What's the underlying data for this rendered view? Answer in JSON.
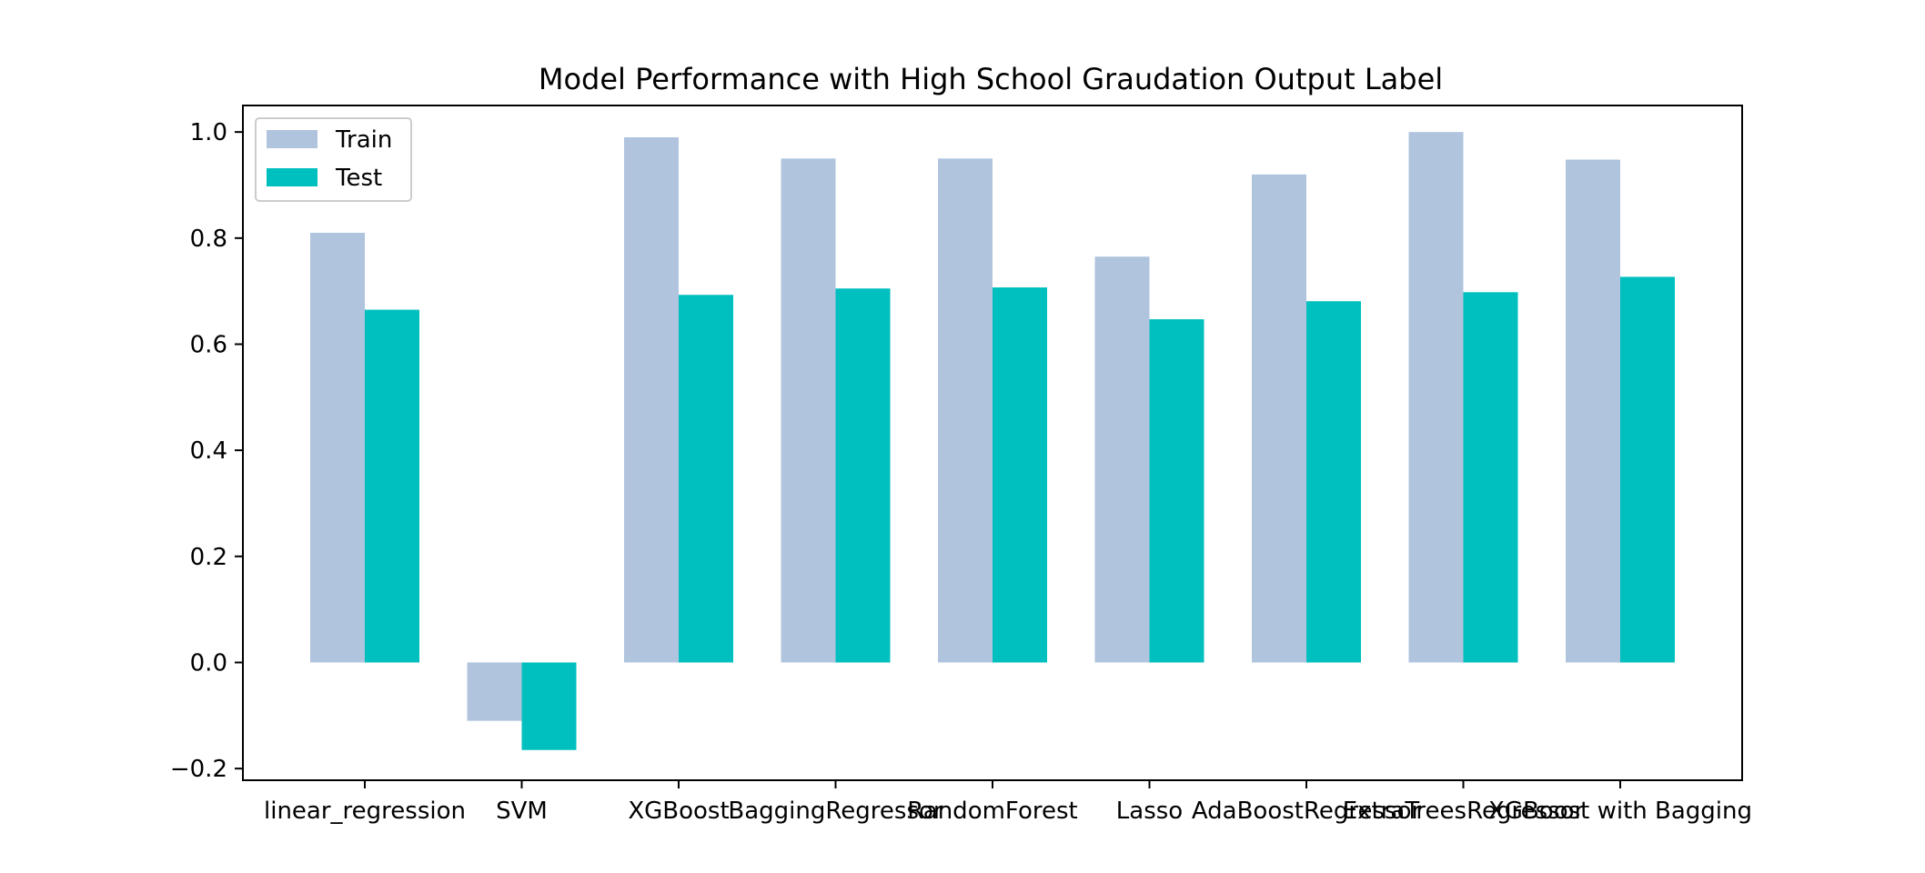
{
  "chart_data": {
    "type": "bar",
    "title": "Model Performance with High School Graudation Output Label",
    "xlabel": "",
    "ylabel": "",
    "categories": [
      "linear_regression",
      "SVM",
      "XGBoost",
      "BaggingRegressor",
      "RandomForest",
      "Lasso",
      "AdaBoostRegressor",
      "ExtraTreesRegressor",
      "XGBoost with Bagging"
    ],
    "series": [
      {
        "name": "Train",
        "color": "#b0c4de",
        "values": [
          0.81,
          -0.11,
          0.99,
          0.95,
          0.95,
          0.765,
          0.92,
          1.0,
          0.948
        ]
      },
      {
        "name": "Test",
        "color": "#00bfbf",
        "values": [
          0.665,
          -0.165,
          0.693,
          0.705,
          0.707,
          0.647,
          0.681,
          0.698,
          0.727
        ]
      }
    ],
    "ylim": [
      -0.222,
      1.05
    ],
    "yticks": [
      -0.2,
      0.0,
      0.2,
      0.4,
      0.6,
      0.8,
      1.0
    ],
    "ytick_labels": [
      "−0.2",
      "0.0",
      "0.2",
      "0.4",
      "0.6",
      "0.8",
      "1.0"
    ],
    "grid": false,
    "legend_position": "top-left"
  }
}
